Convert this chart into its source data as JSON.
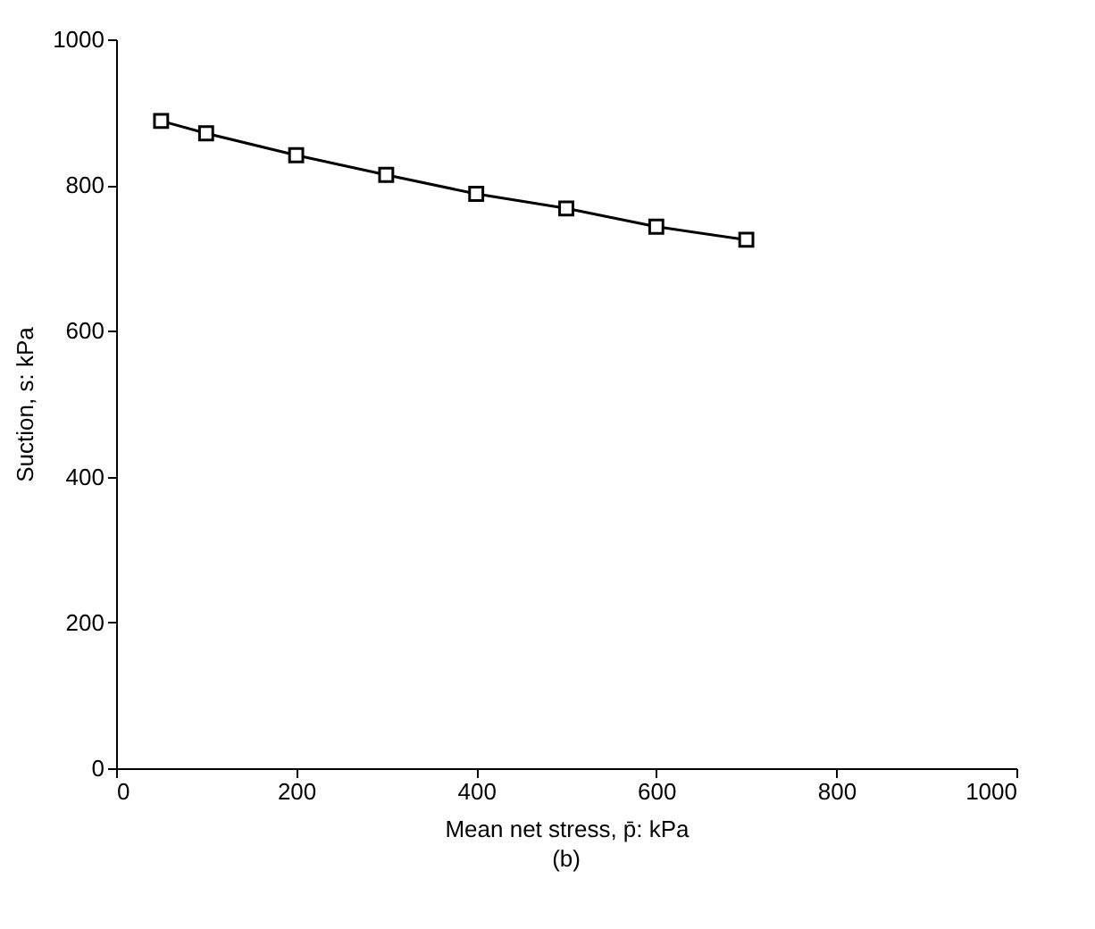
{
  "chart_data": {
    "type": "line",
    "xlabel": "Mean net stress, p̄: kPa",
    "ylabel": "Suction, s: kPa",
    "annotations": [
      "(b)"
    ],
    "x": [
      50,
      100,
      200,
      300,
      400,
      500,
      600,
      700
    ],
    "series": [
      {
        "color": "#000000",
        "values": [
          888,
          871,
          841,
          814,
          788,
          768,
          743,
          725
        ]
      }
    ],
    "xlim": [
      0,
      1000
    ],
    "xticks": [
      0,
      200,
      400,
      600,
      800,
      1000
    ],
    "ylim": [
      0,
      1000
    ],
    "yticks": [
      0,
      200,
      400,
      600,
      800,
      1000
    ],
    "marker": "square",
    "line_style": "solid",
    "grid": false
  }
}
